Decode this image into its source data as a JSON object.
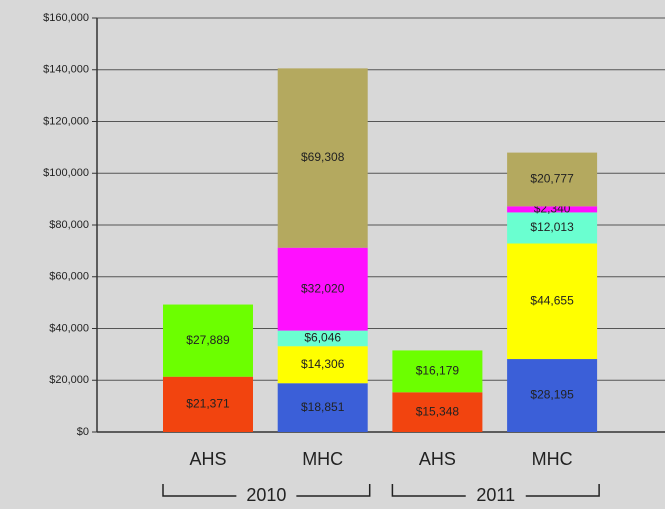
{
  "chart_data": {
    "type": "stacked_bar",
    "categories": [
      "AHS",
      "MHC",
      "AHS",
      "MHC"
    ],
    "groups": [
      "2010",
      "2011"
    ],
    "series": [
      {
        "color": "#f2440f",
        "values": [
          21371,
          null,
          15348,
          null
        ],
        "value_labels": [
          "$21,371",
          null,
          "$15,348",
          null
        ]
      },
      {
        "color": "#3b5fd8",
        "values": [
          null,
          18851,
          null,
          28195
        ],
        "value_labels": [
          null,
          "$18,851",
          null,
          "$28,195"
        ]
      },
      {
        "color": "#ffff00",
        "values": [
          null,
          14306,
          null,
          44655
        ],
        "value_labels": [
          null,
          "$14,306",
          null,
          "$44,655"
        ]
      },
      {
        "color": "#6affd0",
        "values": [
          null,
          6046,
          null,
          12013
        ],
        "value_labels": [
          null,
          "$6,046",
          null,
          "$12,013"
        ]
      },
      {
        "color": "#ff10ff",
        "values": [
          null,
          32020,
          null,
          2340
        ],
        "value_labels": [
          null,
          "$32,020",
          null,
          "$2,340"
        ]
      },
      {
        "color": "#b4a95f",
        "values": [
          null,
          69308,
          null,
          20777
        ],
        "value_labels": [
          null,
          "$69,308",
          null,
          "$20,777"
        ]
      },
      {
        "color": "#6cff00",
        "values": [
          27889,
          null,
          16179,
          null
        ],
        "value_labels": [
          "$27,889",
          null,
          "$16,179",
          null
        ]
      }
    ],
    "ylim": [
      0,
      160000
    ],
    "yticks": [
      {
        "value": 0,
        "label": "$0"
      },
      {
        "value": 20000,
        "label": "$20,000"
      },
      {
        "value": 40000,
        "label": "$40,000"
      },
      {
        "value": 60000,
        "label": "$60,000"
      },
      {
        "value": 80000,
        "label": "$80,000"
      },
      {
        "value": 100000,
        "label": "$100,000"
      },
      {
        "value": 120000,
        "label": "$120,000"
      },
      {
        "value": 140000,
        "label": "$140,000"
      },
      {
        "value": 160000,
        "label": "$160,000"
      }
    ],
    "grid": true
  }
}
